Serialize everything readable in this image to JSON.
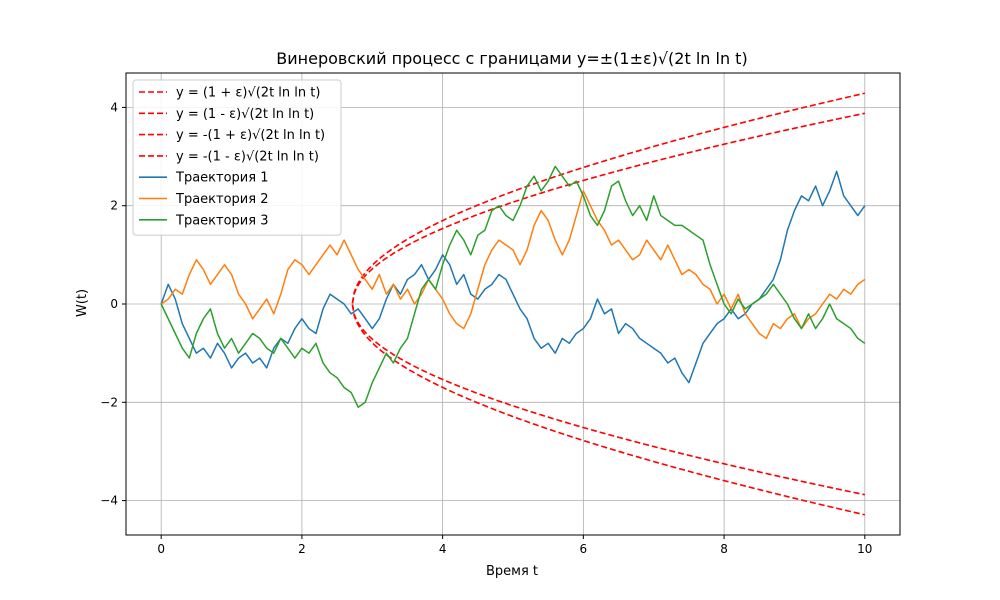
{
  "chart_data": {
    "type": "line",
    "title": "Винеровский процесс с границами y=±(1±ε)√(2t ln ln t)",
    "xlabel": "Время t",
    "ylabel": "W(t)",
    "xlim": [
      -0.5,
      10.5
    ],
    "ylim": [
      -4.7,
      4.7
    ],
    "xticks": [
      0,
      2,
      4,
      6,
      8,
      10
    ],
    "yticks": [
      -4,
      -2,
      0,
      2,
      4
    ],
    "xtick_labels": [
      "0",
      "2",
      "4",
      "6",
      "8",
      "10"
    ],
    "ytick_labels": [
      "−4",
      "−2",
      "0",
      "2",
      "4"
    ],
    "grid": true,
    "legend_position": "top-left",
    "epsilon": 0.05,
    "boundaries": [
      {
        "name": "y = (1 + ε)√(2t ln ln t)",
        "sign": 1,
        "factor": 1.05,
        "color": "#ff0000",
        "style": "dashed"
      },
      {
        "name": "y = (1 - ε)√(2t ln ln t)",
        "sign": 1,
        "factor": 0.95,
        "color": "#ff0000",
        "style": "dashed"
      },
      {
        "name": "y = -(1 + ε)√(2t ln ln t)",
        "sign": -1,
        "factor": 1.05,
        "color": "#ff0000",
        "style": "dashed"
      },
      {
        "name": "y = -(1 - ε)√(2t ln ln t)",
        "sign": -1,
        "factor": 0.95,
        "color": "#ff0000",
        "style": "dashed"
      }
    ],
    "series": [
      {
        "name": "Траектория 1",
        "color": "#1f77b4",
        "x": [
          0,
          0.1,
          0.2,
          0.3,
          0.4,
          0.5,
          0.6,
          0.7,
          0.8,
          0.9,
          1.0,
          1.1,
          1.2,
          1.3,
          1.4,
          1.5,
          1.6,
          1.7,
          1.8,
          1.9,
          2.0,
          2.1,
          2.2,
          2.3,
          2.4,
          2.5,
          2.6,
          2.7,
          2.8,
          2.9,
          3.0,
          3.1,
          3.2,
          3.3,
          3.4,
          3.5,
          3.6,
          3.7,
          3.8,
          3.9,
          4.0,
          4.1,
          4.2,
          4.3,
          4.4,
          4.5,
          4.6,
          4.7,
          4.8,
          4.9,
          5.0,
          5.1,
          5.2,
          5.3,
          5.4,
          5.5,
          5.6,
          5.7,
          5.8,
          5.9,
          6.0,
          6.1,
          6.2,
          6.3,
          6.4,
          6.5,
          6.6,
          6.7,
          6.8,
          6.9,
          7.0,
          7.1,
          7.2,
          7.3,
          7.4,
          7.5,
          7.6,
          7.7,
          7.8,
          7.9,
          8.0,
          8.1,
          8.2,
          8.3,
          8.4,
          8.5,
          8.6,
          8.7,
          8.8,
          8.9,
          9.0,
          9.1,
          9.2,
          9.3,
          9.4,
          9.5,
          9.6,
          9.7,
          9.8,
          9.9,
          10.0
        ],
        "y": [
          0,
          0.4,
          0.1,
          -0.4,
          -0.7,
          -1.0,
          -0.9,
          -1.1,
          -0.8,
          -1.0,
          -1.3,
          -1.1,
          -1.0,
          -1.2,
          -1.1,
          -1.3,
          -0.9,
          -0.7,
          -0.8,
          -0.5,
          -0.3,
          -0.5,
          -0.6,
          -0.1,
          0.2,
          0.1,
          0.0,
          -0.2,
          -0.1,
          -0.3,
          -0.5,
          -0.3,
          0.1,
          0.4,
          0.2,
          0.5,
          0.6,
          0.8,
          0.5,
          0.7,
          1.0,
          0.8,
          0.4,
          0.6,
          0.2,
          0.1,
          0.3,
          0.4,
          0.6,
          0.5,
          0.2,
          -0.1,
          -0.3,
          -0.7,
          -0.9,
          -0.8,
          -1.0,
          -0.7,
          -0.8,
          -0.6,
          -0.5,
          -0.3,
          0.1,
          -0.2,
          -0.1,
          -0.6,
          -0.4,
          -0.5,
          -0.7,
          -0.8,
          -0.9,
          -1.0,
          -1.2,
          -1.1,
          -1.4,
          -1.6,
          -1.2,
          -0.8,
          -0.6,
          -0.4,
          -0.3,
          -0.1,
          -0.3,
          -0.2,
          0.0,
          0.1,
          0.3,
          0.5,
          0.9,
          1.5,
          1.9,
          2.2,
          2.1,
          2.4,
          2.0,
          2.3,
          2.7,
          2.2,
          2.0,
          1.8,
          2.0
        ]
      },
      {
        "name": "Траектория 2",
        "color": "#ff7f0e",
        "x": [
          0,
          0.1,
          0.2,
          0.3,
          0.4,
          0.5,
          0.6,
          0.7,
          0.8,
          0.9,
          1.0,
          1.1,
          1.2,
          1.3,
          1.4,
          1.5,
          1.6,
          1.7,
          1.8,
          1.9,
          2.0,
          2.1,
          2.2,
          2.3,
          2.4,
          2.5,
          2.6,
          2.7,
          2.8,
          2.9,
          3.0,
          3.1,
          3.2,
          3.3,
          3.4,
          3.5,
          3.6,
          3.7,
          3.8,
          3.9,
          4.0,
          4.1,
          4.2,
          4.3,
          4.4,
          4.5,
          4.6,
          4.7,
          4.8,
          4.9,
          5.0,
          5.1,
          5.2,
          5.3,
          5.4,
          5.5,
          5.6,
          5.7,
          5.8,
          5.9,
          6.0,
          6.1,
          6.2,
          6.3,
          6.4,
          6.5,
          6.6,
          6.7,
          6.8,
          6.9,
          7.0,
          7.1,
          7.2,
          7.3,
          7.4,
          7.5,
          7.6,
          7.7,
          7.8,
          7.9,
          8.0,
          8.1,
          8.2,
          8.3,
          8.4,
          8.5,
          8.6,
          8.7,
          8.8,
          8.9,
          9.0,
          9.1,
          9.2,
          9.3,
          9.4,
          9.5,
          9.6,
          9.7,
          9.8,
          9.9,
          10.0
        ],
        "y": [
          0,
          0.1,
          0.3,
          0.2,
          0.6,
          0.9,
          0.7,
          0.4,
          0.6,
          0.8,
          0.6,
          0.2,
          0.0,
          -0.3,
          -0.1,
          0.1,
          -0.2,
          0.2,
          0.7,
          0.9,
          0.8,
          0.6,
          0.8,
          1.0,
          1.2,
          1.0,
          1.3,
          1.0,
          0.7,
          0.5,
          0.3,
          0.6,
          0.2,
          0.4,
          0.1,
          0.3,
          0.0,
          0.2,
          0.5,
          0.3,
          0.1,
          -0.2,
          -0.4,
          -0.5,
          -0.2,
          0.3,
          0.8,
          1.1,
          1.3,
          1.2,
          1.1,
          0.8,
          1.1,
          1.6,
          1.9,
          1.7,
          1.3,
          1.0,
          1.3,
          1.8,
          2.3,
          2.0,
          1.7,
          1.5,
          1.2,
          1.3,
          1.1,
          0.9,
          1.0,
          1.3,
          1.1,
          0.9,
          1.2,
          0.9,
          0.6,
          0.7,
          0.6,
          0.4,
          0.3,
          0.0,
          0.2,
          -0.1,
          0.2,
          -0.2,
          -0.4,
          -0.6,
          -0.7,
          -0.4,
          -0.5,
          -0.3,
          -0.2,
          -0.5,
          -0.3,
          -0.2,
          0.0,
          0.2,
          0.1,
          0.3,
          0.2,
          0.4,
          0.5
        ]
      },
      {
        "name": "Траектория 3",
        "color": "#2ca02c",
        "x": [
          0,
          0.1,
          0.2,
          0.3,
          0.4,
          0.5,
          0.6,
          0.7,
          0.8,
          0.9,
          1.0,
          1.1,
          1.2,
          1.3,
          1.4,
          1.5,
          1.6,
          1.7,
          1.8,
          1.9,
          2.0,
          2.1,
          2.2,
          2.3,
          2.4,
          2.5,
          2.6,
          2.7,
          2.8,
          2.9,
          3.0,
          3.1,
          3.2,
          3.3,
          3.4,
          3.5,
          3.6,
          3.7,
          3.8,
          3.9,
          4.0,
          4.1,
          4.2,
          4.3,
          4.4,
          4.5,
          4.6,
          4.7,
          4.8,
          4.9,
          5.0,
          5.1,
          5.2,
          5.3,
          5.4,
          5.5,
          5.6,
          5.7,
          5.8,
          5.9,
          6.0,
          6.1,
          6.2,
          6.3,
          6.4,
          6.5,
          6.6,
          6.7,
          6.8,
          6.9,
          7.0,
          7.1,
          7.2,
          7.3,
          7.4,
          7.5,
          7.6,
          7.7,
          7.8,
          7.9,
          8.0,
          8.1,
          8.2,
          8.3,
          8.4,
          8.5,
          8.6,
          8.7,
          8.8,
          8.9,
          9.0,
          9.1,
          9.2,
          9.3,
          9.4,
          9.5,
          9.6,
          9.7,
          9.8,
          9.9,
          10.0
        ],
        "y": [
          0,
          -0.3,
          -0.6,
          -0.9,
          -1.1,
          -0.6,
          -0.3,
          -0.1,
          -0.6,
          -0.9,
          -0.7,
          -1.0,
          -0.8,
          -0.6,
          -0.7,
          -0.9,
          -1.0,
          -0.7,
          -0.9,
          -1.1,
          -0.9,
          -1.0,
          -0.8,
          -1.2,
          -1.4,
          -1.5,
          -1.7,
          -1.8,
          -2.1,
          -2.0,
          -1.6,
          -1.3,
          -1.0,
          -1.2,
          -0.9,
          -0.7,
          -0.2,
          0.3,
          0.5,
          0.3,
          0.8,
          1.2,
          1.5,
          1.3,
          1.0,
          1.4,
          1.5,
          1.9,
          2.0,
          1.8,
          1.7,
          2.0,
          2.4,
          2.6,
          2.3,
          2.5,
          2.8,
          2.6,
          2.4,
          2.5,
          2.2,
          1.8,
          1.6,
          1.9,
          2.4,
          2.5,
          2.1,
          1.8,
          2.0,
          1.7,
          2.2,
          1.8,
          1.7,
          1.6,
          1.6,
          1.5,
          1.4,
          1.3,
          0.8,
          0.4,
          0.0,
          -0.2,
          0.1,
          -0.1,
          0.0,
          0.1,
          0.2,
          0.4,
          0.2,
          0.0,
          -0.3,
          -0.5,
          -0.2,
          -0.5,
          -0.3,
          0.0,
          -0.3,
          -0.4,
          -0.5,
          -0.7,
          -0.8
        ]
      }
    ]
  }
}
